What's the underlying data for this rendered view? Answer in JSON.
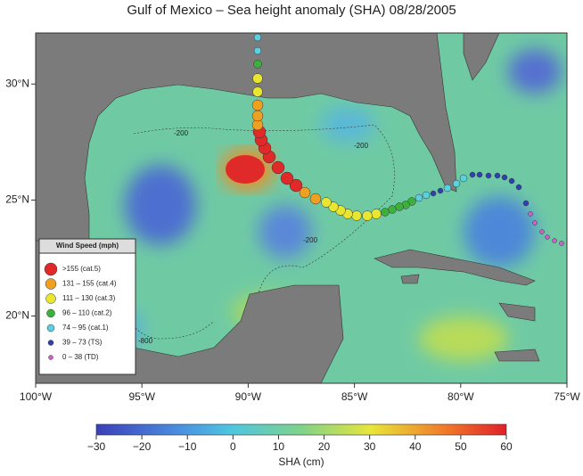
{
  "map": {
    "title": "Gulf of Mexico – Sea height anomaly (SHA)   08/28/2005",
    "xlim": [
      -100,
      -75
    ],
    "ylim": [
      17.1,
      32.2
    ],
    "xticks": [
      {
        "value": -100,
        "label": "100°W"
      },
      {
        "value": -95,
        "label": "95°W"
      },
      {
        "value": -90,
        "label": "90°W"
      },
      {
        "value": -85,
        "label": "85°W"
      },
      {
        "value": -80,
        "label": "80°W"
      },
      {
        "value": -75,
        "label": "75°W"
      }
    ],
    "yticks": [
      {
        "value": 20,
        "label": "20°N"
      },
      {
        "value": 25,
        "label": "25°N"
      },
      {
        "value": 30,
        "label": "30°N"
      }
    ],
    "contour_labels": [
      "-200",
      "-200",
      "-200",
      "-800"
    ],
    "legend": {
      "title": "Wind Speed (mph)",
      "entries": [
        ">155 (cat.5)",
        "131 – 155 (cat.4)",
        "111 – 130 (cat.3)",
        "96 – 110 (cat.2)",
        "74 – 95 (cat.1)",
        "39 – 73 (TS)",
        "0 – 38 (TD)"
      ]
    },
    "colorbar": {
      "label": "SHA (cm)",
      "lim": [
        -30,
        60
      ],
      "ticks": [
        {
          "value": -30,
          "label": "−30"
        },
        {
          "value": -20,
          "label": "−20"
        },
        {
          "value": -10,
          "label": "−10"
        },
        0,
        10,
        20,
        30,
        40,
        50,
        60
      ]
    }
  }
}
